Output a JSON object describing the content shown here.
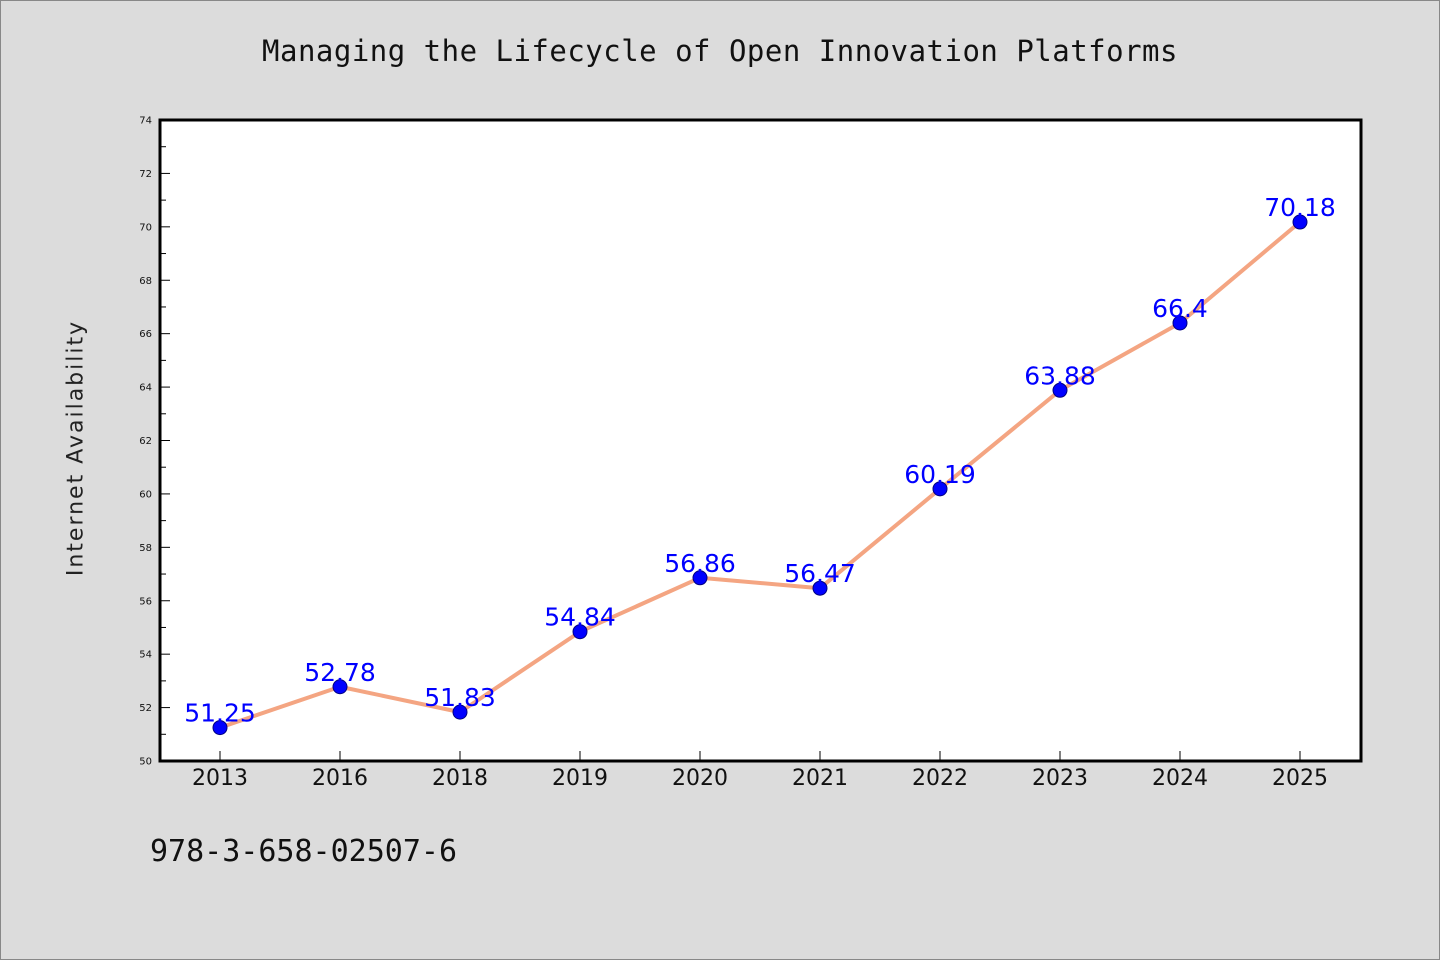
{
  "chart_data": {
    "type": "line",
    "title": "Managing the Lifecycle of Open Innovation Platforms",
    "xlabel": "",
    "ylabel": "Internet Availability",
    "categories": [
      "2013",
      "2016",
      "2018",
      "2019",
      "2020",
      "2021",
      "2022",
      "2023",
      "2024",
      "2025"
    ],
    "series": [
      {
        "values": [
          51.25,
          52.78,
          51.83,
          54.84,
          56.86,
          56.47,
          60.19,
          63.88,
          66.4,
          70.18
        ],
        "data_labels": [
          "51.25",
          "52.78",
          "51.83",
          "54.84",
          "56.86",
          "56.47",
          "60.19",
          "63.88",
          "66.4",
          "70.18"
        ]
      }
    ],
    "ylim": [
      50,
      74
    ],
    "yticks": [
      "50",
      "52",
      "54",
      "56",
      "58",
      "60",
      "62",
      "64",
      "66",
      "68",
      "70",
      "72",
      "74"
    ],
    "grid": false,
    "legend": "none",
    "colors": {
      "line": "#f4a582",
      "marker": "#0000ff",
      "marker_edge": "#000080",
      "data_label": "#0000ff",
      "plot_background": "#ffffff",
      "figure_background": "#dcdcdc"
    }
  },
  "footer": {
    "isbn": "978-3-658-02507-6"
  }
}
